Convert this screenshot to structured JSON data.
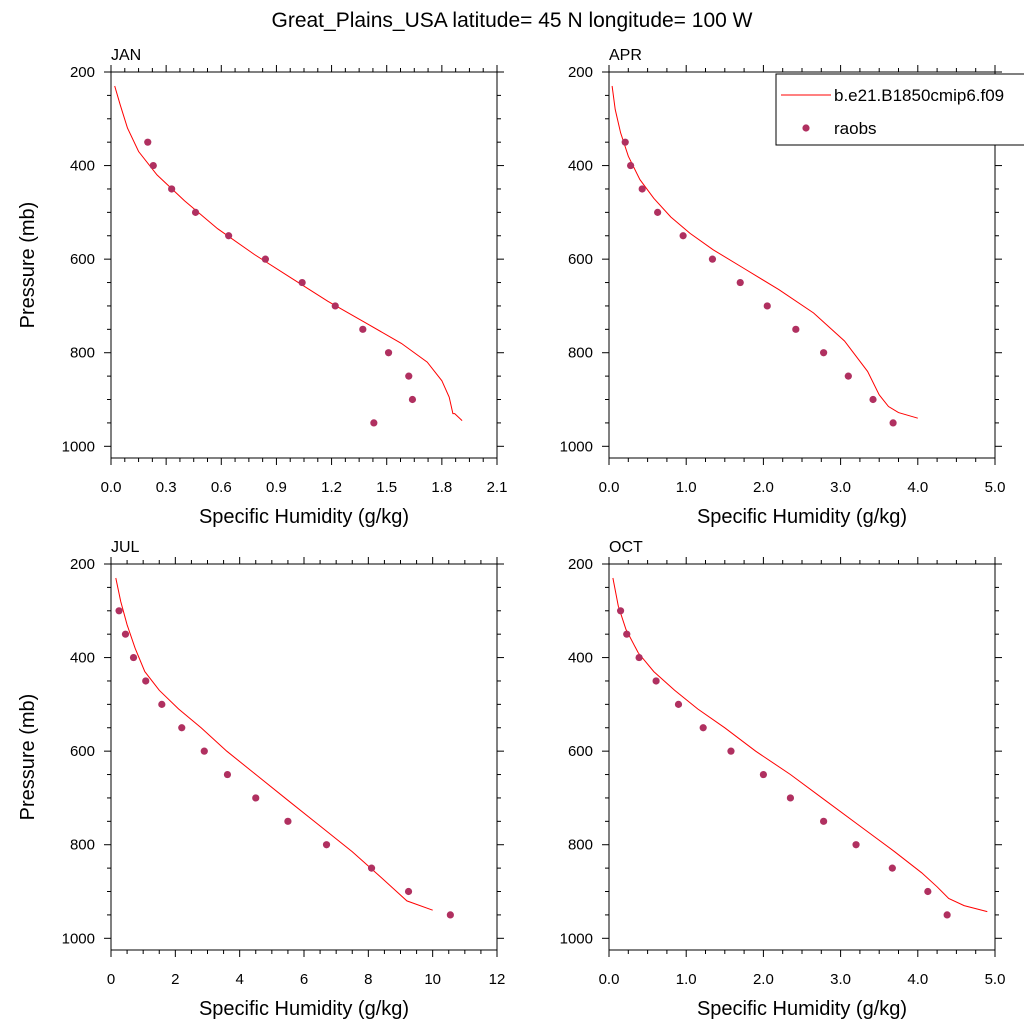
{
  "figure": {
    "title": "Great_Plains_USA  latitude= 45 N longitude= 100 W"
  },
  "legend": {
    "model_label": "b.e21.B1850cmip6.f09",
    "obs_label": "raobs"
  },
  "colors": {
    "model_line": "#ff0000",
    "obs_marker": "#b03060",
    "frame": "#000000"
  },
  "chart_data": [
    {
      "type": "scatter",
      "panel": "JAN",
      "xlabel": "Specific Humidity (g/kg)",
      "ylabel": "Pressure (mb)",
      "xlim": [
        0,
        2.1
      ],
      "ylim": [
        1025,
        200
      ],
      "y_reversed": true,
      "x_ticks": [
        "0.0",
        "0.3",
        "0.6",
        "0.9",
        "1.2",
        "1.5",
        "1.8",
        "2.1"
      ],
      "y_ticks": [
        "200",
        "400",
        "600",
        "800",
        "1000"
      ],
      "series": [
        {
          "name": "b.e21.B1850cmip6.f09",
          "type": "line",
          "x": [
            0.02,
            0.05,
            0.09,
            0.15,
            0.25,
            0.4,
            0.58,
            0.78,
            0.98,
            1.18,
            1.38,
            1.58,
            1.72,
            1.8,
            1.84,
            1.86,
            1.87,
            1.91
          ],
          "y": [
            230,
            270,
            320,
            370,
            420,
            475,
            535,
            590,
            640,
            690,
            735,
            780,
            820,
            860,
            895,
            930,
            930,
            945
          ]
        },
        {
          "name": "raobs",
          "type": "scatter",
          "x": [
            0.2,
            0.23,
            0.33,
            0.46,
            0.64,
            0.84,
            1.04,
            1.22,
            1.37,
            1.51,
            1.62,
            1.64,
            1.43
          ],
          "y": [
            350,
            400,
            450,
            500,
            550,
            600,
            650,
            700,
            750,
            800,
            850,
            900,
            950
          ]
        }
      ]
    },
    {
      "type": "scatter",
      "panel": "APR",
      "xlabel": "Specific Humidity (g/kg)",
      "ylabel": "",
      "xlim": [
        0,
        5
      ],
      "ylim": [
        1025,
        200
      ],
      "y_reversed": true,
      "x_ticks": [
        "0.0",
        "1.0",
        "2.0",
        "3.0",
        "4.0",
        "5.0"
      ],
      "y_ticks": [
        "200",
        "400",
        "600",
        "800",
        "1000"
      ],
      "series": [
        {
          "name": "b.e21.B1850cmip6.f09",
          "type": "line",
          "x": [
            0.04,
            0.08,
            0.15,
            0.25,
            0.4,
            0.58,
            0.8,
            1.05,
            1.35,
            1.75,
            2.2,
            2.65,
            3.05,
            3.35,
            3.5,
            3.62,
            3.75,
            4.0
          ],
          "y": [
            230,
            280,
            330,
            380,
            430,
            470,
            510,
            545,
            580,
            620,
            665,
            715,
            775,
            840,
            890,
            915,
            928,
            940
          ]
        },
        {
          "name": "raobs",
          "type": "scatter",
          "x": [
            0.21,
            0.28,
            0.43,
            0.63,
            0.96,
            1.34,
            1.7,
            2.05,
            2.42,
            2.78,
            3.1,
            3.42,
            3.68
          ],
          "y": [
            350,
            400,
            450,
            500,
            550,
            600,
            650,
            700,
            750,
            800,
            850,
            900,
            950
          ]
        }
      ]
    },
    {
      "type": "scatter",
      "panel": "JUL",
      "xlabel": "Specific Humidity (g/kg)",
      "ylabel": "Pressure (mb)",
      "xlim": [
        0,
        12
      ],
      "ylim": [
        1025,
        200
      ],
      "y_reversed": true,
      "x_ticks": [
        "0",
        "2",
        "4",
        "6",
        "8",
        "10",
        "12"
      ],
      "y_ticks": [
        "200",
        "400",
        "600",
        "800",
        "1000"
      ],
      "series": [
        {
          "name": "b.e21.B1850cmip6.f09",
          "type": "line",
          "x": [
            0.15,
            0.3,
            0.5,
            0.75,
            1.05,
            1.5,
            2.1,
            2.8,
            3.6,
            4.5,
            5.5,
            6.5,
            7.5,
            8.4,
            9.2,
            10.0
          ],
          "y": [
            230,
            280,
            330,
            380,
            430,
            470,
            510,
            550,
            600,
            650,
            705,
            760,
            815,
            870,
            920,
            940
          ]
        },
        {
          "name": "raobs",
          "type": "scatter",
          "x": [
            0.25,
            0.45,
            0.7,
            1.08,
            1.58,
            2.2,
            2.9,
            3.62,
            4.5,
            5.5,
            6.7,
            8.1,
            9.25,
            10.55
          ],
          "y": [
            300,
            350,
            400,
            450,
            500,
            550,
            600,
            650,
            700,
            750,
            800,
            850,
            900,
            950
          ]
        }
      ]
    },
    {
      "type": "scatter",
      "panel": "OCT",
      "xlabel": "Specific Humidity (g/kg)",
      "ylabel": "",
      "xlim": [
        0,
        5
      ],
      "ylim": [
        1025,
        200
      ],
      "y_reversed": true,
      "x_ticks": [
        "0.0",
        "1.0",
        "2.0",
        "3.0",
        "4.0",
        "5.0"
      ],
      "y_ticks": [
        "200",
        "400",
        "600",
        "800",
        "1000"
      ],
      "series": [
        {
          "name": "b.e21.B1850cmip6.f09",
          "type": "line",
          "x": [
            0.05,
            0.12,
            0.22,
            0.38,
            0.58,
            0.85,
            1.15,
            1.5,
            1.9,
            2.35,
            2.8,
            3.25,
            3.7,
            4.05,
            4.25,
            4.4,
            4.6,
            4.9
          ],
          "y": [
            230,
            290,
            340,
            390,
            430,
            470,
            510,
            550,
            600,
            650,
            705,
            760,
            815,
            860,
            890,
            915,
            930,
            943
          ]
        },
        {
          "name": "raobs",
          "type": "scatter",
          "x": [
            0.15,
            0.23,
            0.39,
            0.61,
            0.9,
            1.22,
            1.58,
            2.0,
            2.35,
            2.78,
            3.2,
            3.67,
            4.13,
            4.38
          ],
          "y": [
            300,
            350,
            400,
            450,
            500,
            550,
            600,
            650,
            700,
            750,
            800,
            850,
            900,
            950
          ]
        }
      ]
    }
  ]
}
